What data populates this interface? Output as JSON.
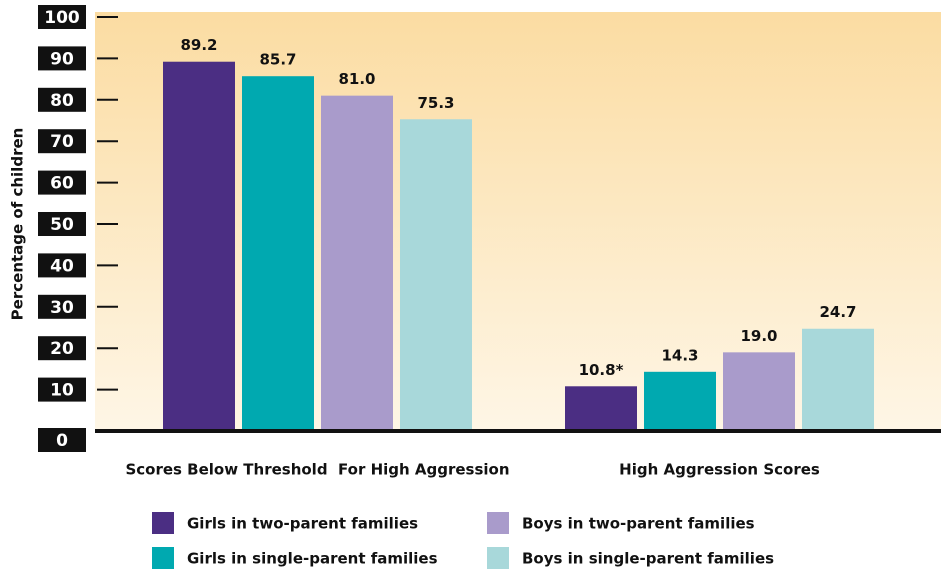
{
  "chart_data": {
    "type": "bar",
    "y_label": "Percentage of children",
    "categories": [
      "Scores Below Threshold  For High Aggression",
      "High Aggression Scores"
    ],
    "series": [
      {
        "name": "Girls in two-parent families",
        "color": "#4b2e83",
        "values": [
          89.2,
          10.8
        ],
        "value_labels": [
          "89.2",
          "10.8*"
        ]
      },
      {
        "name": "Girls in single-parent families",
        "color": "#00a9b0",
        "values": [
          85.7,
          14.3
        ],
        "value_labels": [
          "85.7",
          "14.3"
        ]
      },
      {
        "name": "Boys in two-parent families",
        "color": "#a99bcb",
        "values": [
          81.0,
          19.0
        ],
        "value_labels": [
          "81.0",
          "19.0"
        ]
      },
      {
        "name": "Boys in single-parent families",
        "color": "#a8d8da",
        "values": [
          75.3,
          24.7
        ],
        "value_labels": [
          "75.3",
          "24.7"
        ]
      }
    ],
    "ylim": [
      0,
      100
    ],
    "yticks": [
      0,
      10,
      20,
      30,
      40,
      50,
      60,
      70,
      80,
      90,
      100
    ]
  }
}
